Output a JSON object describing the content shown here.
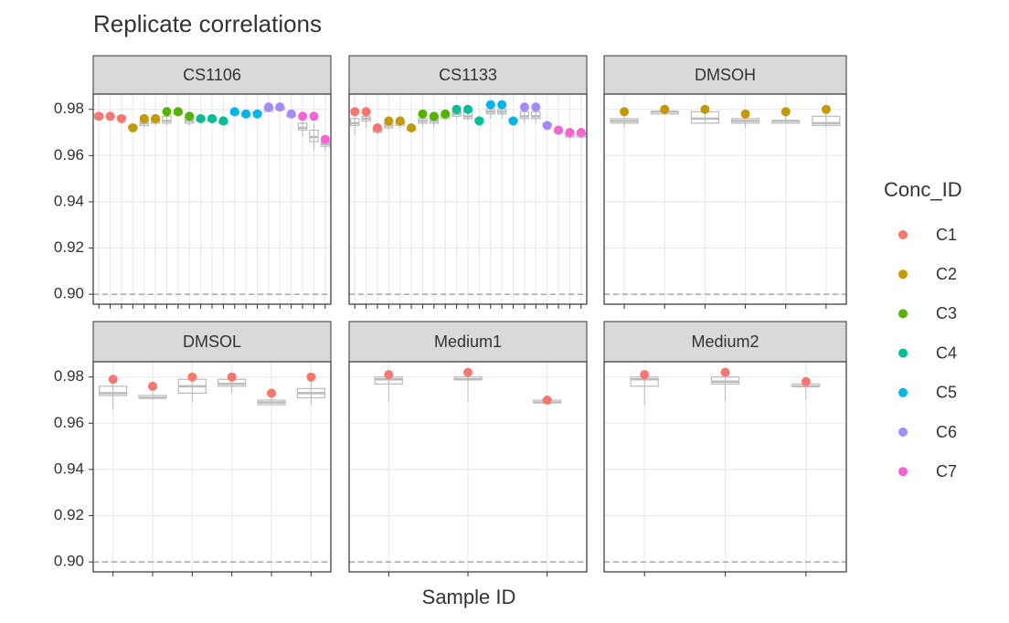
{
  "chart_data": {
    "type": "facet-box-point",
    "title": "Replicate correlations",
    "xlabel": "Sample ID",
    "legend_title": "Conc_ID",
    "legend": "right",
    "grid": true,
    "ylim": [
      0.8957,
      0.9866
    ],
    "yticks": [
      {
        "value": 0.9,
        "label": "0.90"
      },
      {
        "value": 0.92,
        "label": "0.92"
      },
      {
        "value": 0.94,
        "label": "0.94"
      },
      {
        "value": 0.96,
        "label": "0.96"
      },
      {
        "value": 0.98,
        "label": "0.98"
      }
    ],
    "hline": 0.9,
    "box_color": "#bbbbbb",
    "series": [
      {
        "name": "C1",
        "color": "#F8766D"
      },
      {
        "name": "C2",
        "color": "#C49A00"
      },
      {
        "name": "C3",
        "color": "#53B400"
      },
      {
        "name": "C4",
        "color": "#00C094"
      },
      {
        "name": "C5",
        "color": "#00B6EB"
      },
      {
        "name": "C6",
        "color": "#A58AFF"
      },
      {
        "name": "C7",
        "color": "#FB61D7"
      }
    ],
    "panels": [
      {
        "title": "CS1106",
        "categories": [
          null,
          null,
          null,
          null,
          null,
          null,
          null,
          null,
          null,
          null,
          null,
          null,
          null,
          null,
          null,
          null,
          null,
          null,
          null,
          null,
          null
        ],
        "series": [
          {
            "name": "C1",
            "values": [
              0.977,
              0.977,
              0.976,
              null,
              null,
              null,
              null,
              null,
              null,
              null,
              null,
              null,
              null,
              null,
              null,
              null,
              null,
              null,
              null,
              null,
              null
            ]
          },
          {
            "name": "C2",
            "values": [
              null,
              null,
              null,
              0.972,
              0.976,
              0.976,
              null,
              null,
              null,
              null,
              null,
              null,
              null,
              null,
              null,
              null,
              null,
              null,
              null,
              null,
              null
            ]
          },
          {
            "name": "C3",
            "values": [
              null,
              null,
              null,
              null,
              null,
              null,
              0.979,
              0.979,
              0.977,
              null,
              null,
              null,
              null,
              null,
              null,
              null,
              null,
              null,
              null,
              null,
              null
            ]
          },
          {
            "name": "C4",
            "values": [
              null,
              null,
              null,
              null,
              null,
              null,
              null,
              null,
              null,
              0.976,
              0.976,
              0.975,
              null,
              null,
              null,
              null,
              null,
              null,
              null,
              null,
              null
            ]
          },
          {
            "name": "C5",
            "values": [
              null,
              null,
              null,
              null,
              null,
              null,
              null,
              null,
              null,
              null,
              null,
              null,
              0.979,
              0.978,
              0.978,
              null,
              null,
              null,
              null,
              null,
              null
            ]
          },
          {
            "name": "C6",
            "values": [
              null,
              null,
              null,
              null,
              null,
              null,
              null,
              null,
              null,
              null,
              null,
              null,
              null,
              null,
              null,
              0.981,
              0.981,
              0.978,
              null,
              null,
              null
            ]
          },
          {
            "name": "C7",
            "values": [
              null,
              null,
              null,
              null,
              null,
              null,
              null,
              null,
              null,
              null,
              null,
              null,
              null,
              null,
              null,
              null,
              null,
              null,
              0.977,
              0.977,
              0.967
            ]
          }
        ],
        "boxes": [
          [
            0.976,
            0.976,
            0.977,
            0.978,
            0.978
          ],
          [
            0.976,
            0.977,
            0.977,
            0.977,
            0.978
          ],
          [
            0.975,
            0.976,
            0.976,
            0.977,
            0.977
          ],
          [
            0.972,
            0.972,
            0.972,
            0.973,
            0.973
          ],
          [
            0.972,
            0.973,
            0.974,
            0.975,
            0.976
          ],
          [
            0.973,
            0.974,
            0.975,
            0.976,
            0.976
          ],
          [
            0.973,
            0.974,
            0.975,
            0.977,
            0.978
          ],
          [
            0.977,
            0.978,
            0.978,
            0.979,
            0.979
          ],
          [
            0.973,
            0.974,
            0.975,
            0.977,
            0.977
          ],
          [
            0.975,
            0.975,
            0.976,
            0.976,
            0.977
          ],
          [
            0.974,
            0.975,
            0.975,
            0.976,
            0.977
          ],
          [
            0.974,
            0.974,
            0.974,
            0.975,
            0.975
          ],
          [
            0.977,
            0.978,
            0.978,
            0.979,
            0.979
          ],
          [
            0.977,
            0.977,
            0.978,
            0.978,
            0.979
          ],
          [
            0.977,
            0.978,
            0.978,
            0.979,
            0.979
          ],
          [
            0.979,
            0.979,
            0.98,
            0.981,
            0.981
          ],
          [
            0.979,
            0.98,
            0.98,
            0.981,
            0.981
          ],
          [
            0.976,
            0.977,
            0.977,
            0.978,
            0.978
          ],
          [
            0.968,
            0.971,
            0.972,
            0.974,
            0.976
          ],
          [
            0.962,
            0.966,
            0.968,
            0.971,
            0.974
          ],
          [
            0.962,
            0.964,
            0.965,
            0.966,
            0.967
          ]
        ]
      },
      {
        "title": "CS1133",
        "categories": [
          null,
          null,
          null,
          null,
          null,
          null,
          null,
          null,
          null,
          null,
          null,
          null,
          null,
          null,
          null,
          null,
          null,
          null,
          null,
          null,
          null
        ],
        "series": [
          {
            "name": "C1",
            "values": [
              0.979,
              0.979,
              0.972,
              null,
              null,
              null,
              null,
              null,
              null,
              null,
              null,
              null,
              null,
              null,
              null,
              null,
              null,
              null,
              null,
              null,
              null
            ]
          },
          {
            "name": "C2",
            "values": [
              null,
              null,
              null,
              0.975,
              0.975,
              0.972,
              null,
              null,
              null,
              null,
              null,
              null,
              null,
              null,
              null,
              null,
              null,
              null,
              null,
              null,
              null
            ]
          },
          {
            "name": "C3",
            "values": [
              null,
              null,
              null,
              null,
              null,
              null,
              0.978,
              0.977,
              0.978,
              null,
              null,
              null,
              null,
              null,
              null,
              null,
              null,
              null,
              null,
              null,
              null
            ]
          },
          {
            "name": "C4",
            "values": [
              null,
              null,
              null,
              null,
              null,
              null,
              null,
              null,
              null,
              0.98,
              0.98,
              0.975,
              null,
              null,
              null,
              null,
              null,
              null,
              null,
              null,
              null
            ]
          },
          {
            "name": "C5",
            "values": [
              null,
              null,
              null,
              null,
              null,
              null,
              null,
              null,
              null,
              null,
              null,
              null,
              0.982,
              0.982,
              0.975,
              null,
              null,
              null,
              null,
              null,
              null
            ]
          },
          {
            "name": "C6",
            "values": [
              null,
              null,
              null,
              null,
              null,
              null,
              null,
              null,
              null,
              null,
              null,
              null,
              null,
              null,
              null,
              0.981,
              0.981,
              0.973,
              null,
              null,
              null
            ]
          },
          {
            "name": "C7",
            "values": [
              null,
              null,
              null,
              null,
              null,
              null,
              null,
              null,
              null,
              null,
              null,
              null,
              null,
              null,
              null,
              null,
              null,
              null,
              0.971,
              0.97,
              0.97
            ]
          }
        ],
        "boxes": [
          [
            0.969,
            0.973,
            0.974,
            0.976,
            0.979
          ],
          [
            0.972,
            0.975,
            0.976,
            0.977,
            0.979
          ],
          [
            0.969,
            0.97,
            0.971,
            0.972,
            0.972
          ],
          [
            0.971,
            0.972,
            0.973,
            0.974,
            0.975
          ],
          [
            0.972,
            0.973,
            0.974,
            0.975,
            0.975
          ],
          [
            0.971,
            0.971,
            0.972,
            0.972,
            0.972
          ],
          [
            0.972,
            0.974,
            0.975,
            0.976,
            0.977
          ],
          [
            0.972,
            0.974,
            0.975,
            0.977,
            0.978
          ],
          [
            0.975,
            0.976,
            0.977,
            0.978,
            0.978
          ],
          [
            0.976,
            0.977,
            0.978,
            0.979,
            0.98
          ],
          [
            0.975,
            0.976,
            0.977,
            0.979,
            0.98
          ],
          [
            0.975,
            0.975,
            0.975,
            0.976,
            0.976
          ],
          [
            0.976,
            0.978,
            0.979,
            0.98,
            0.982
          ],
          [
            0.976,
            0.978,
            0.979,
            0.98,
            0.982
          ],
          [
            0.975,
            0.975,
            0.975,
            0.976,
            0.976
          ],
          [
            0.974,
            0.976,
            0.977,
            0.979,
            0.981
          ],
          [
            0.974,
            0.976,
            0.977,
            0.979,
            0.981
          ],
          [
            0.973,
            0.973,
            0.973,
            0.974,
            0.974
          ],
          [
            0.97,
            0.97,
            0.971,
            0.971,
            0.971
          ],
          [
            0.967,
            0.968,
            0.969,
            0.97,
            0.97
          ],
          [
            0.967,
            0.968,
            0.969,
            0.97,
            0.971
          ]
        ]
      },
      {
        "title": "DMSOH",
        "categories": [
          null,
          null,
          null,
          null,
          null,
          null
        ],
        "series": [
          {
            "name": "C2",
            "values": [
              0.979,
              0.98,
              0.98,
              0.978,
              0.979,
              0.98
            ]
          }
        ],
        "boxes": [
          [
            0.972,
            0.974,
            0.975,
            0.976,
            0.979
          ],
          [
            0.978,
            0.978,
            0.979,
            0.979,
            0.98
          ],
          [
            0.974,
            0.974,
            0.976,
            0.979,
            0.98
          ],
          [
            0.972,
            0.974,
            0.975,
            0.976,
            0.978
          ],
          [
            0.974,
            0.974,
            0.975,
            0.975,
            0.979
          ],
          [
            0.972,
            0.973,
            0.974,
            0.977,
            0.98
          ]
        ]
      },
      {
        "title": "DMSOL",
        "categories": [
          null,
          null,
          null,
          null,
          null,
          null
        ],
        "series": [
          {
            "name": "C1",
            "values": [
              0.979,
              0.976,
              0.98,
              0.98,
              0.973,
              0.98
            ]
          }
        ],
        "boxes": [
          [
            0.966,
            0.972,
            0.973,
            0.976,
            0.979
          ],
          [
            0.97,
            0.971,
            0.971,
            0.972,
            0.975
          ],
          [
            0.969,
            0.973,
            0.976,
            0.979,
            0.98
          ],
          [
            0.973,
            0.976,
            0.977,
            0.979,
            0.98
          ],
          [
            0.968,
            0.968,
            0.969,
            0.97,
            0.972
          ],
          [
            0.968,
            0.971,
            0.973,
            0.975,
            0.98
          ]
        ]
      },
      {
        "title": "Medium1",
        "categories": [
          null,
          null,
          null
        ],
        "series": [
          {
            "name": "C1",
            "values": [
              0.981,
              0.982,
              0.97
            ]
          }
        ],
        "boxes": [
          [
            0.969,
            0.977,
            0.979,
            0.98,
            0.981
          ],
          [
            0.969,
            0.979,
            0.979,
            0.98,
            0.982
          ],
          [
            0.969,
            0.969,
            0.969,
            0.97,
            0.97
          ]
        ]
      },
      {
        "title": "Medium2",
        "categories": [
          null,
          null,
          null
        ],
        "series": [
          {
            "name": "C1",
            "values": [
              0.981,
              0.982,
              0.978
            ]
          }
        ],
        "boxes": [
          [
            0.968,
            0.976,
            0.979,
            0.98,
            0.981
          ],
          [
            0.97,
            0.977,
            0.978,
            0.98,
            0.982
          ],
          [
            0.97,
            0.976,
            0.976,
            0.977,
            0.978
          ]
        ]
      }
    ]
  }
}
